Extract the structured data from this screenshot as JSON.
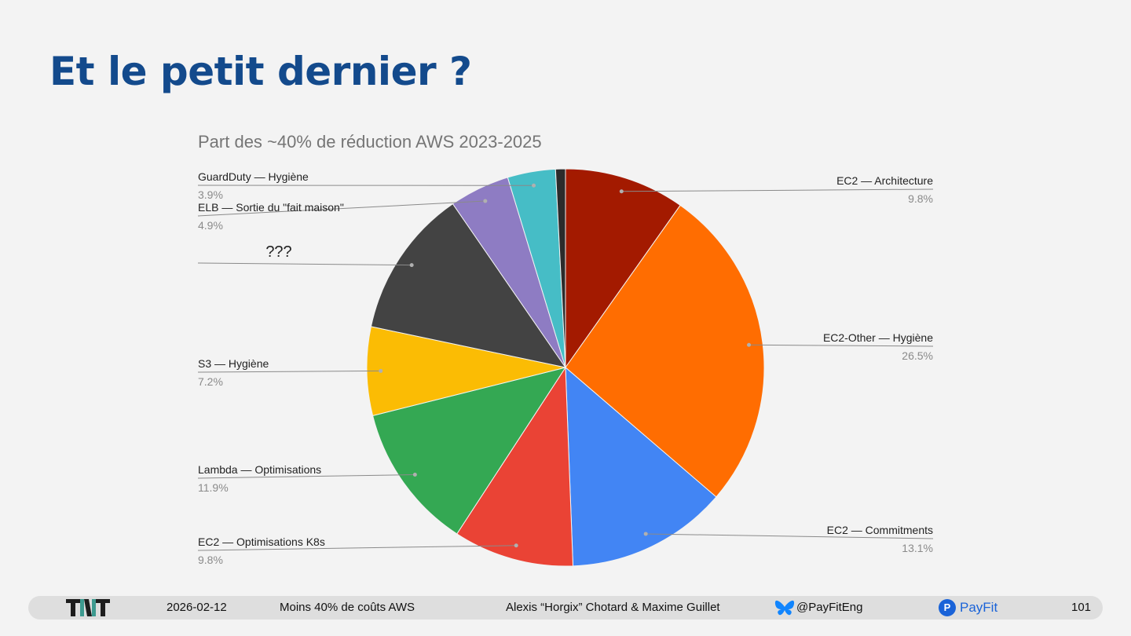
{
  "slide": {
    "title": "Et le petit dernier ?"
  },
  "chart_data": {
    "type": "pie",
    "title": "Part des ~40% de réduction AWS 2023-2025",
    "start_angle_deg": 0,
    "direction": "clockwise",
    "slices": [
      {
        "label": "EC2 — Architecture",
        "value": 9.8,
        "pct_label": "9.8%",
        "color": "#a31a00"
      },
      {
        "label": "EC2-Other — Hygiène",
        "value": 26.5,
        "pct_label": "26.5%",
        "color": "#ff6d01"
      },
      {
        "label": "EC2 — Commitments",
        "value": 13.1,
        "pct_label": "13.1%",
        "color": "#4285f4"
      },
      {
        "label": "EC2 — Optimisations K8s",
        "value": 9.8,
        "pct_label": "9.8%",
        "color": "#ea4335"
      },
      {
        "label": "Lambda — Optimisations",
        "value": 11.9,
        "pct_label": "11.9%",
        "color": "#34a853"
      },
      {
        "label": "S3 — Hygiène",
        "value": 7.2,
        "pct_label": "7.2%",
        "color": "#fbbc04"
      },
      {
        "label": "???",
        "value": 12.1,
        "pct_label": "",
        "color": "#434343"
      },
      {
        "label": "ELB — Sortie du \"fait maison\"",
        "value": 4.9,
        "pct_label": "4.9%",
        "color": "#8e7cc3"
      },
      {
        "label": "GuardDuty — Hygiène",
        "value": 3.9,
        "pct_label": "3.9%",
        "color": "#46bdc6"
      },
      {
        "label": "",
        "value": 0.8,
        "pct_label": "",
        "color": "#2b2b2b"
      }
    ]
  },
  "footer": {
    "date": "2026-02-12",
    "talk": "Moins 40% de coûts AWS",
    "authors": "Alexis “Horgix” Chotard & Maxime Guillet",
    "handle": "@PayFitEng",
    "brand": "PayFit",
    "brand_icon_letter": "P",
    "page": "101"
  }
}
